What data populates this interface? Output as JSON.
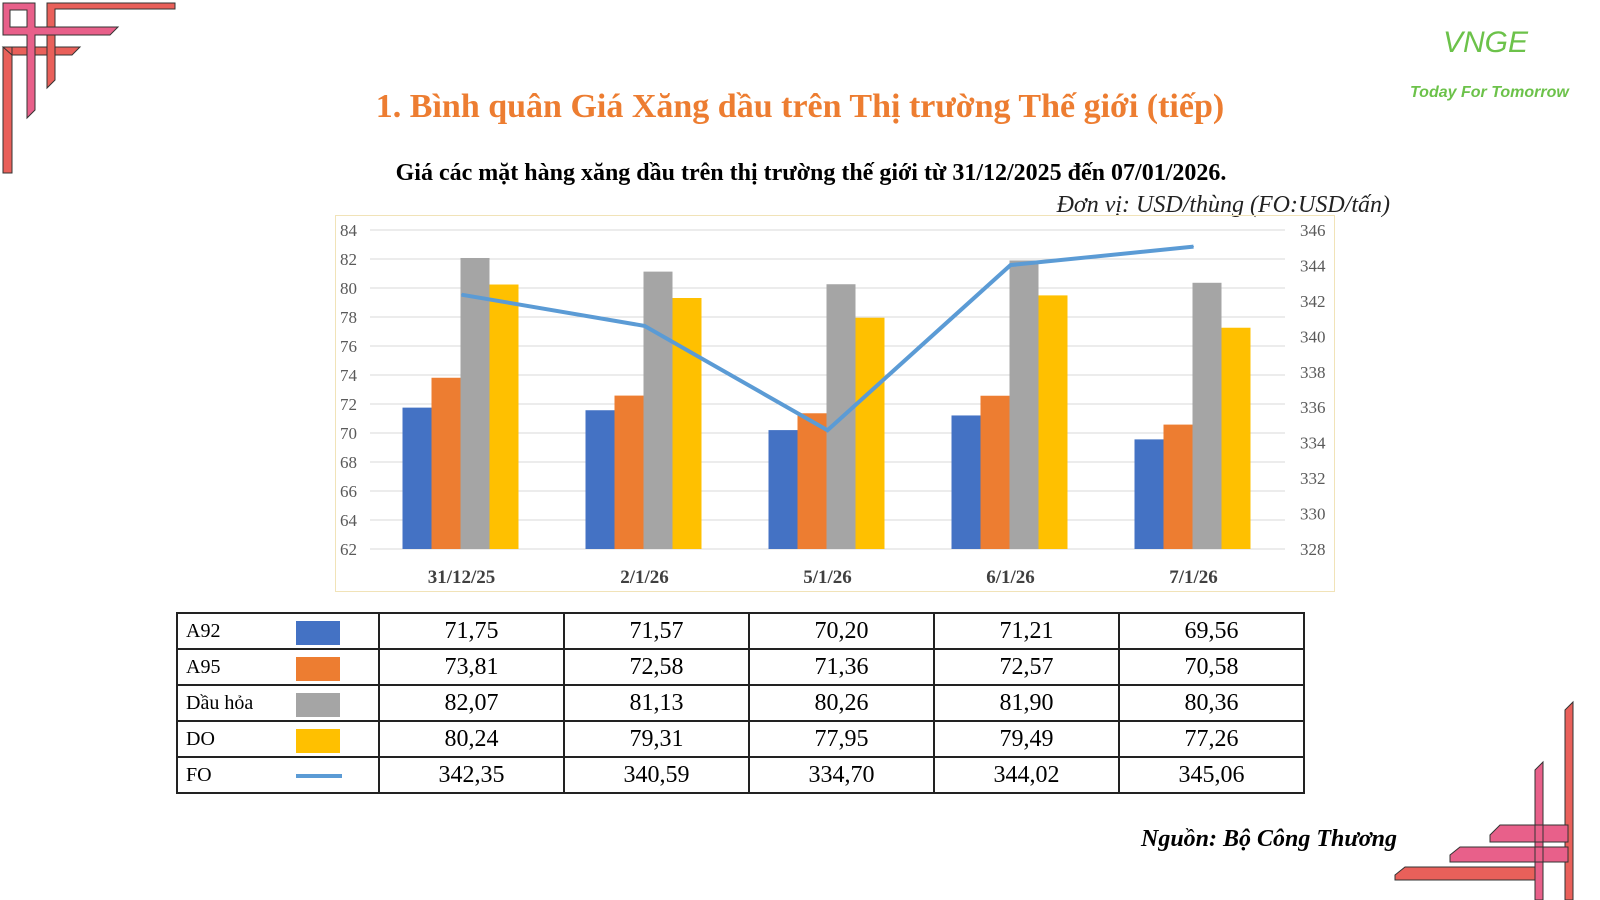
{
  "title": "1. Bình quân Giá Xăng dầu trên Thị trường Thế giới (tiếp)",
  "logo": {
    "brand": "VNGE",
    "slogan": "Today For Tomorrow"
  },
  "source": "Nguồn: Bộ Công Thương",
  "chart_data": {
    "type": "bar+line",
    "title": "Giá các mặt hàng xăng dầu trên thị trường thế giới từ 31/12/2025 đến 07/01/2026.",
    "unit": "Đơn vị: USD/thùng (FO:USD/tấn)",
    "categories": [
      "31/12/25",
      "2/1/26",
      "5/1/26",
      "6/1/26",
      "7/1/26"
    ],
    "ylim": [
      62,
      84
    ],
    "yticks": [
      "62",
      "64",
      "66",
      "68",
      "70",
      "72",
      "74",
      "76",
      "78",
      "80",
      "82",
      "84"
    ],
    "y2lim": [
      328,
      346
    ],
    "y2ticks": [
      "328",
      "330",
      "332",
      "334",
      "336",
      "338",
      "340",
      "342",
      "344",
      "346"
    ],
    "grid": true,
    "series": [
      {
        "name": "A92",
        "type": "bar",
        "axis": "left",
        "color": "#4472C4",
        "values": [
          71.75,
          71.57,
          70.2,
          71.21,
          69.56
        ],
        "labels": [
          "71,75",
          "71,57",
          "70,20",
          "71,21",
          "69,56"
        ]
      },
      {
        "name": "A95",
        "type": "bar",
        "axis": "left",
        "color": "#ED7D31",
        "values": [
          73.81,
          72.58,
          71.36,
          72.57,
          70.58
        ],
        "labels": [
          "73,81",
          "72,58",
          "71,36",
          "72,57",
          "70,58"
        ]
      },
      {
        "name": "Dầu hỏa",
        "type": "bar",
        "axis": "left",
        "color": "#A5A5A5",
        "values": [
          82.07,
          81.13,
          80.26,
          81.9,
          80.36
        ],
        "labels": [
          "82,07",
          "81,13",
          "80,26",
          "81,90",
          "80,36"
        ]
      },
      {
        "name": "DO",
        "type": "bar",
        "axis": "left",
        "color": "#FFC000",
        "values": [
          80.24,
          79.31,
          77.95,
          79.49,
          77.26
        ],
        "labels": [
          "80,24",
          "79,31",
          "77,95",
          "79,49",
          "77,26"
        ]
      },
      {
        "name": "FO",
        "type": "line",
        "axis": "right",
        "color": "#5B9BD5",
        "values": [
          342.35,
          340.59,
          334.7,
          344.02,
          345.06
        ],
        "labels": [
          "342,35",
          "340,59",
          "334,70",
          "344,02",
          "345,06"
        ]
      }
    ]
  }
}
